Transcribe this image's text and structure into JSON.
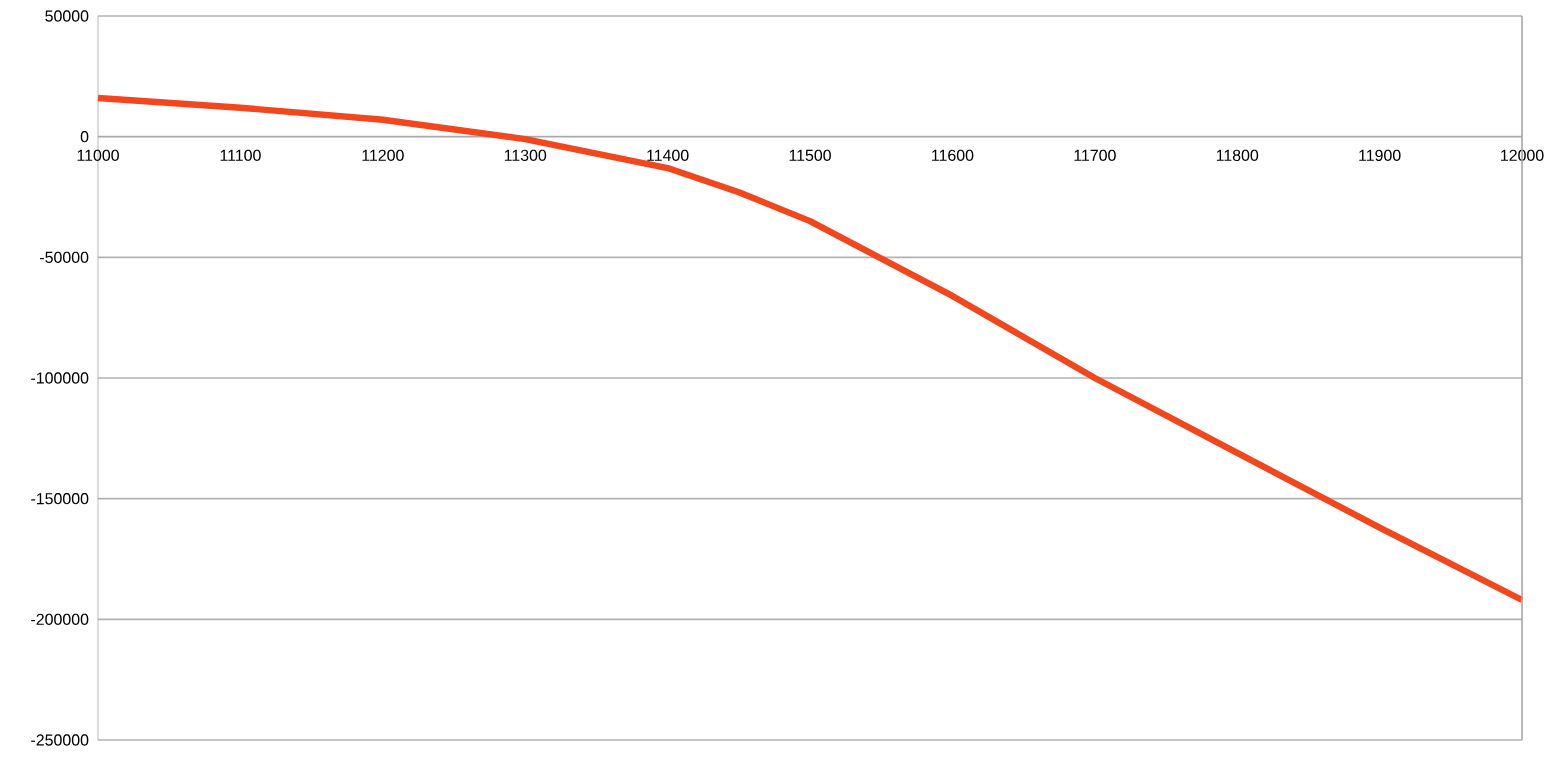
{
  "chart_data": {
    "type": "line",
    "x": [
      11000,
      11100,
      11200,
      11300,
      11400,
      11450,
      11500,
      11600,
      11700,
      11800,
      11900,
      12000
    ],
    "series": [
      {
        "color": "#f2461c",
        "values": [
          16000,
          12000,
          7000,
          -1000,
          -13000,
          -23000,
          -35000,
          -66000,
          -100000,
          -131000,
          -162000,
          -192000
        ]
      }
    ],
    "xlim": [
      11000,
      12000
    ],
    "xticks": [
      11000,
      11100,
      11200,
      11300,
      11400,
      11500,
      11600,
      11700,
      11800,
      11900,
      12000
    ],
    "ylim": [
      -250000,
      50000
    ],
    "yticks": [
      -250000,
      -200000,
      -150000,
      -100000,
      -50000,
      0,
      50000
    ],
    "grid": "y",
    "marker": "none",
    "line_style": "solid"
  }
}
